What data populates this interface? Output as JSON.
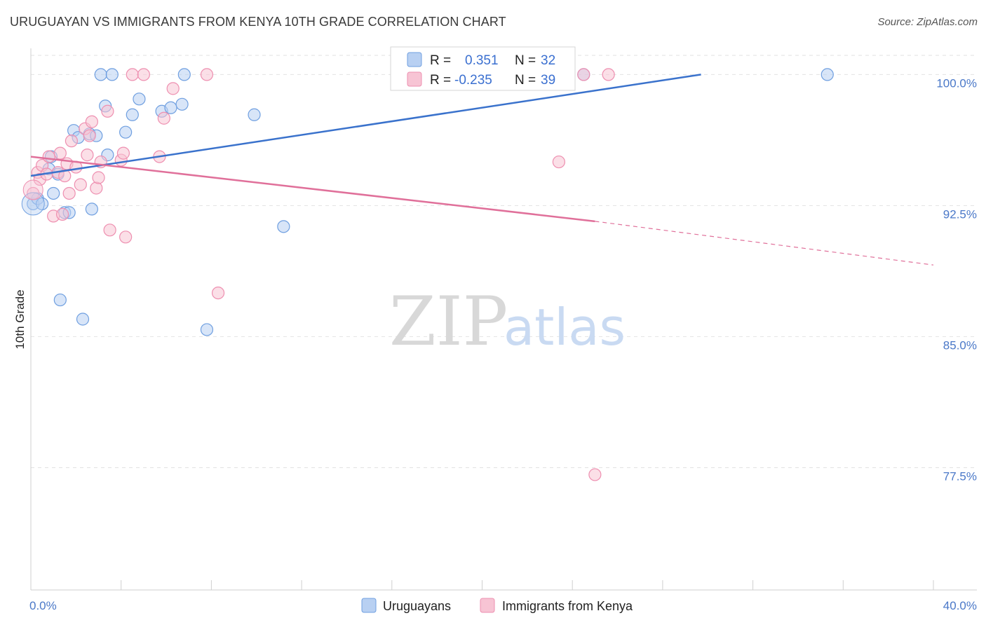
{
  "title": "URUGUAYAN VS IMMIGRANTS FROM KENYA 10TH GRADE CORRELATION CHART",
  "source": "Source: ZipAtlas.com",
  "watermark": {
    "zip": "ZIP",
    "atlas": "atlas"
  },
  "legend": {
    "rows": [
      {
        "r_label": "R =",
        "r_value": "0.351",
        "n_label": "N =",
        "n_value": "32",
        "color": "#6f9fe0"
      },
      {
        "r_label": "R =",
        "r_value": "-0.235",
        "n_label": "N =",
        "n_value": "39",
        "color": "#ee8fb0"
      }
    ]
  },
  "chart_data": {
    "type": "scatter",
    "title": "URUGUAYAN VS IMMIGRANTS FROM KENYA 10TH GRADE CORRELATION CHART",
    "xlabel": "",
    "ylabel": "10th Grade",
    "xlim": [
      0,
      40
    ],
    "ylim": [
      70.5,
      101.5
    ],
    "x_tick_labels": [
      "0.0%",
      "40.0%"
    ],
    "y_ticks": [
      {
        "value": 100.0,
        "label": "100.0%"
      },
      {
        "value": 92.5,
        "label": "92.5%"
      },
      {
        "value": 85.0,
        "label": "85.0%"
      },
      {
        "value": 77.5,
        "label": "77.5%"
      }
    ],
    "grid": true,
    "series": [
      {
        "name": "Uruguayans",
        "color": "#6f9fe0",
        "fill": "#b8d0f2",
        "points": [
          [
            0.1,
            92.6
          ],
          [
            0.3,
            92.9
          ],
          [
            0.5,
            92.6
          ],
          [
            0.8,
            94.6
          ],
          [
            0.9,
            95.3
          ],
          [
            1.0,
            93.2
          ],
          [
            1.2,
            94.3
          ],
          [
            1.3,
            87.1
          ],
          [
            1.5,
            92.1
          ],
          [
            1.7,
            92.1
          ],
          [
            1.9,
            96.8
          ],
          [
            2.1,
            96.4
          ],
          [
            2.3,
            86.0
          ],
          [
            2.6,
            96.6
          ],
          [
            2.7,
            92.3
          ],
          [
            2.9,
            96.5
          ],
          [
            3.1,
            100.0
          ],
          [
            3.3,
            98.2
          ],
          [
            3.4,
            95.4
          ],
          [
            3.6,
            100.0
          ],
          [
            4.2,
            96.7
          ],
          [
            4.5,
            97.7
          ],
          [
            4.8,
            98.6
          ],
          [
            5.8,
            97.9
          ],
          [
            6.2,
            98.1
          ],
          [
            6.7,
            98.3
          ],
          [
            6.8,
            100.0
          ],
          [
            7.8,
            85.4
          ],
          [
            9.9,
            97.7
          ],
          [
            11.2,
            91.3
          ],
          [
            24.5,
            100.0
          ],
          [
            35.3,
            100.0
          ]
        ],
        "trend": {
          "x": [
            0.0,
            29.7
          ],
          "y": [
            94.2,
            100.0
          ],
          "dashed_to": null
        }
      },
      {
        "name": "Immigrants from Kenya",
        "color": "#ee8fb0",
        "fill": "#f7c4d4",
        "points": [
          [
            0.1,
            93.2
          ],
          [
            0.3,
            94.4
          ],
          [
            0.4,
            94.0
          ],
          [
            0.5,
            94.8
          ],
          [
            0.7,
            94.3
          ],
          [
            0.8,
            95.3
          ],
          [
            1.0,
            91.9
          ],
          [
            1.2,
            94.4
          ],
          [
            1.3,
            95.5
          ],
          [
            1.4,
            92.0
          ],
          [
            1.5,
            94.2
          ],
          [
            1.6,
            94.9
          ],
          [
            1.7,
            93.2
          ],
          [
            1.8,
            96.2
          ],
          [
            2.0,
            94.7
          ],
          [
            2.2,
            93.7
          ],
          [
            2.4,
            96.9
          ],
          [
            2.5,
            95.4
          ],
          [
            2.6,
            96.5
          ],
          [
            2.7,
            97.3
          ],
          [
            2.9,
            93.5
          ],
          [
            3.0,
            94.1
          ],
          [
            3.1,
            95.0
          ],
          [
            3.4,
            97.9
          ],
          [
            3.5,
            91.1
          ],
          [
            4.0,
            95.1
          ],
          [
            4.1,
            95.5
          ],
          [
            4.2,
            90.7
          ],
          [
            4.5,
            100.0
          ],
          [
            5.0,
            100.0
          ],
          [
            5.7,
            95.3
          ],
          [
            5.9,
            97.5
          ],
          [
            6.3,
            99.2
          ],
          [
            7.8,
            100.0
          ],
          [
            8.3,
            87.5
          ],
          [
            23.4,
            95.0
          ],
          [
            24.5,
            100.0
          ],
          [
            25.0,
            77.1
          ],
          [
            25.6,
            100.0
          ]
        ],
        "trend": {
          "x": [
            0.0,
            25.0
          ],
          "y": [
            95.3,
            91.6
          ],
          "dashed_to": [
            40.0,
            89.1
          ]
        }
      }
    ]
  },
  "bottom_legend": [
    {
      "label": "Uruguayans",
      "color": "#6f9fe0",
      "fill": "#b8d0f2"
    },
    {
      "label": "Immigrants from Kenya",
      "color": "#ee8fb0",
      "fill": "#f7c4d4"
    }
  ]
}
